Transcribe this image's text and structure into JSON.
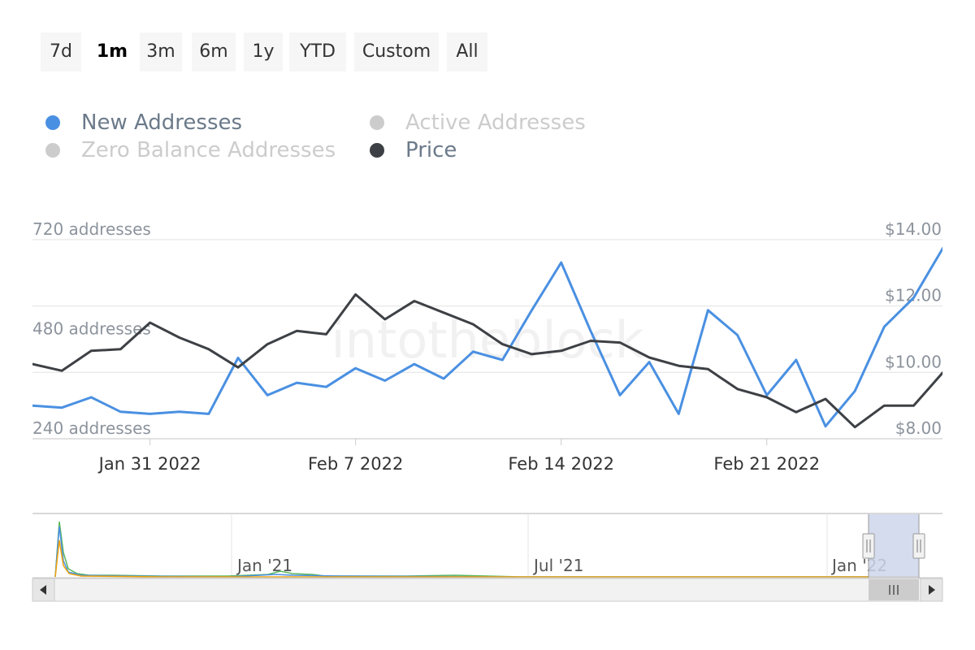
{
  "range_selector": {
    "buttons": [
      {
        "label": "7d",
        "active": false
      },
      {
        "label": "1m",
        "active": true
      },
      {
        "label": "3m",
        "active": false
      },
      {
        "label": "6m",
        "active": false
      },
      {
        "label": "1y",
        "active": false
      },
      {
        "label": "YTD",
        "active": false
      },
      {
        "label": "Custom",
        "active": false
      },
      {
        "label": "All",
        "active": false
      }
    ]
  },
  "legend": {
    "items": [
      {
        "label": "New Addresses",
        "color": "#4a90e2",
        "active": true
      },
      {
        "label": "Active Addresses",
        "color": "#cccccc",
        "active": false
      },
      {
        "label": "Zero Balance Addresses",
        "color": "#cccccc",
        "active": false
      },
      {
        "label": "Price",
        "color": "#3d4145",
        "active": true
      }
    ]
  },
  "watermark": "intotheblock",
  "chart_data": {
    "type": "line",
    "x_start": "2022-01-27",
    "x_ticks": [
      "Jan 31 2022",
      "Feb 7 2022",
      "Feb 14 2022",
      "Feb 21 2022"
    ],
    "y_left": {
      "unit": "addresses",
      "range": [
        240,
        720
      ],
      "ticks": [
        "240 addresses",
        "480 addresses",
        "720 addresses"
      ]
    },
    "y_right": {
      "unit": "USD",
      "range": [
        8,
        14
      ],
      "ticks": [
        "$8.00",
        "$10.00",
        "$12.00",
        "$14.00"
      ]
    },
    "series": [
      {
        "name": "New Addresses",
        "axis": "left",
        "color": "#4a90e2",
        "values": [
          320,
          315,
          340,
          305,
          300,
          305,
          300,
          435,
          345,
          375,
          365,
          410,
          380,
          420,
          385,
          450,
          430,
          550,
          665,
          500,
          345,
          425,
          300,
          550,
          490,
          345,
          430,
          270,
          355,
          510,
          580,
          700
        ]
      },
      {
        "name": "Price",
        "axis": "right",
        "color": "#3d4145",
        "values": [
          10.25,
          10.05,
          10.65,
          10.7,
          11.5,
          11.05,
          10.7,
          10.15,
          10.85,
          11.25,
          11.15,
          12.35,
          11.6,
          12.15,
          11.8,
          11.45,
          10.85,
          10.55,
          10.65,
          10.95,
          10.9,
          10.45,
          10.2,
          10.1,
          9.5,
          9.25,
          8.8,
          9.2,
          8.35,
          9.0,
          9.0,
          10.0
        ]
      }
    ]
  },
  "navigator": {
    "ticks": [
      "Jan '21",
      "Jul '21",
      "Jan '22"
    ],
    "series_colors": [
      "#4a90e2",
      "#5cb85c",
      "#f0a30a"
    ]
  }
}
